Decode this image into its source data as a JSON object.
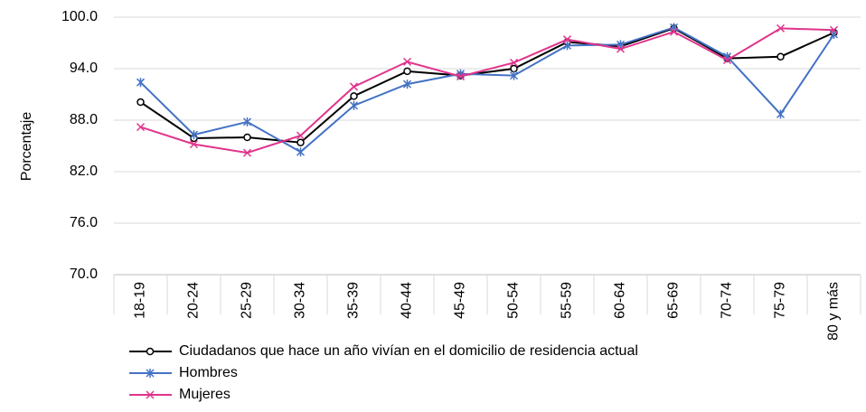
{
  "chart_data": {
    "type": "line",
    "y_label": "Porcentaje",
    "categories": [
      "18-19",
      "20-24",
      "25-29",
      "30-34",
      "35-39",
      "40-44",
      "45-49",
      "50-54",
      "55-59",
      "60-64",
      "65-69",
      "70-74",
      "75-79",
      "80 y más"
    ],
    "series": [
      {
        "name": "Ciudadanos que hace un año vivían en el domicilio de residencia actual",
        "color": "#000000",
        "marker": "circle",
        "values": [
          90.1,
          85.9,
          86.0,
          85.4,
          90.8,
          93.7,
          93.2,
          94.0,
          97.1,
          96.6,
          98.7,
          95.2,
          95.4,
          98.2
        ]
      },
      {
        "name": "Hombres",
        "color": "#4472c4",
        "marker": "asterisk",
        "values": [
          92.4,
          86.3,
          87.8,
          84.3,
          89.7,
          92.2,
          93.4,
          93.2,
          96.7,
          96.8,
          98.8,
          95.4,
          88.7,
          98.0
        ]
      },
      {
        "name": "Mujeres",
        "color": "#e0348c",
        "marker": "cross",
        "values": [
          87.2,
          85.2,
          84.2,
          86.2,
          91.9,
          94.8,
          93.1,
          94.7,
          97.4,
          96.3,
          98.3,
          95.0,
          98.7,
          98.5
        ]
      }
    ],
    "ylim": [
      70,
      100
    ],
    "yticks": [
      {
        "value": 70,
        "label": "70.0"
      },
      {
        "value": 76,
        "label": "76.0"
      },
      {
        "value": 82,
        "label": "82.0"
      },
      {
        "value": 88,
        "label": "88.0"
      },
      {
        "value": 94,
        "label": "94.0"
      },
      {
        "value": 100,
        "label": "100.0"
      }
    ],
    "grid": true,
    "legend": "bottom"
  }
}
